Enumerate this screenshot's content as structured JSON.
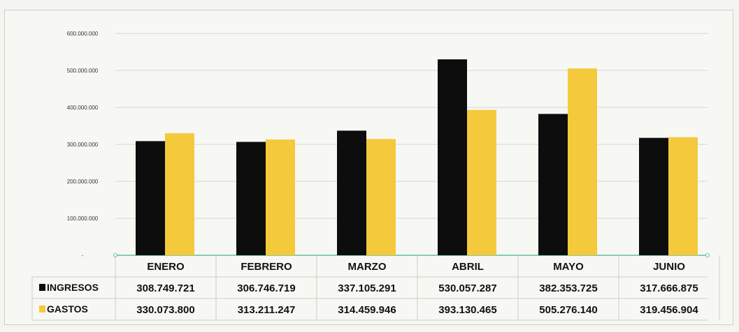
{
  "chart_data": {
    "type": "bar",
    "title": "",
    "xlabel": "",
    "ylabel": "",
    "categories": [
      "ENERO",
      "FEBRERO",
      "MARZO",
      "ABRIL",
      "MAYO",
      "JUNIO"
    ],
    "series": [
      {
        "name": "INGRESOS",
        "color": "#0d0d0d",
        "values": [
          308749721,
          306746719,
          337105291,
          530057287,
          382353725,
          317666875
        ],
        "labels": [
          "308.749.721",
          "306.746.719",
          "337.105.291",
          "530.057.287",
          "382.353.725",
          "317.666.875"
        ]
      },
      {
        "name": "GASTOS",
        "color": "#f5c93c",
        "values": [
          330073800,
          313211247,
          314459946,
          393130465,
          505276140,
          319456904
        ],
        "labels": [
          "330.073.800",
          "313.211.247",
          "314.459.946",
          "393.130.465",
          "505.276.140",
          "319.456.904"
        ]
      }
    ],
    "ylim": [
      0,
      600000000
    ],
    "yticks": [
      0,
      100000000,
      200000000,
      300000000,
      400000000,
      500000000,
      600000000
    ],
    "ytick_labels": [
      "-",
      "100.000.000",
      "200.000.000",
      "300.000.000",
      "400.000.000",
      "500.000.000",
      "600.000.000"
    ],
    "grid": true,
    "legend": "data-table-below"
  }
}
